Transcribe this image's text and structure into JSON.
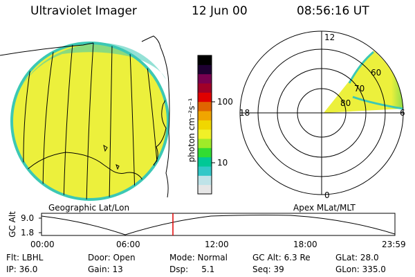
{
  "header": {
    "instrument": "Ultraviolet Imager",
    "date": "12 Jun 00",
    "time": "08:56:16 UT"
  },
  "colorbar": {
    "unit_label": "photon cm⁻²s⁻¹",
    "ticks": [
      "100",
      "10"
    ],
    "colors": [
      "#e6e6e6",
      "#bfe3e8",
      "#32c8c8",
      "#00c896",
      "#32dc32",
      "#a0eb28",
      "#f0f028",
      "#f0d700",
      "#f0a500",
      "#e06400",
      "#e00000",
      "#a00028",
      "#780050",
      "#1e0032",
      "#000000"
    ]
  },
  "geo_panel": {
    "label": "Geographic Lat/Lon",
    "fill_color": "#ecf03c",
    "edge_color": "#3cc8b4"
  },
  "apex_panel": {
    "label": "Apex MLat/MLT",
    "mlt_labels": {
      "top": "12",
      "left": "18",
      "right": "6",
      "bottom": "0"
    },
    "lat_labels": [
      "60",
      "70",
      "80"
    ]
  },
  "altitude_plot": {
    "axis_title": "GC Alt",
    "y_ticks": [
      "9.0",
      "1.8"
    ],
    "x_ticks": [
      "00:00",
      "06:00",
      "12:00",
      "18:00",
      "23:59"
    ],
    "current_time_marker_color": "#e00000"
  },
  "info": {
    "filter": "Flt: LBHL",
    "ip": "IP: 36.0",
    "door": "Door: Open",
    "gain": "Gain: 13",
    "mode": "Mode: Normal",
    "dsp": "Dsp:     5.1",
    "gc_alt": "GC Alt: 6.3 Re",
    "seq": "Seq: 39",
    "glat": "GLat: 28.0",
    "glon": "GLon: 335.0"
  }
}
